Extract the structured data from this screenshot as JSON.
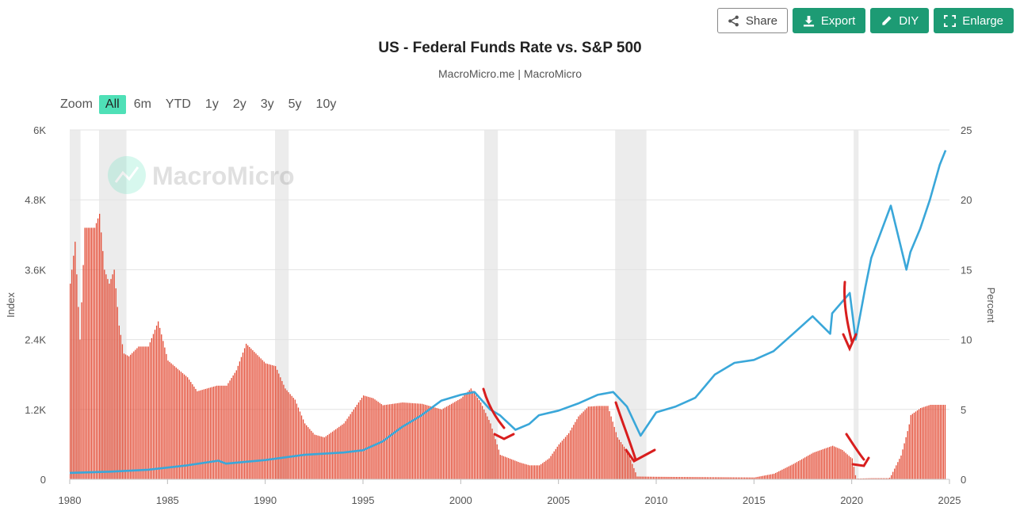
{
  "toolbar": {
    "share_label": "Share",
    "export_label": "Export",
    "diy_label": "DIY",
    "enlarge_label": "Enlarge",
    "accent_color": "#1d9b74"
  },
  "zoom": {
    "label": "Zoom",
    "options": [
      "All",
      "6m",
      "YTD",
      "1y",
      "2y",
      "3y",
      "5y",
      "10y"
    ],
    "selected": "All"
  },
  "watermark": "MacroMicro",
  "chart_data": {
    "type": "bar",
    "title": "US - Federal Funds Rate vs. S&P 500",
    "subtitle": "MacroMicro.me | MacroMicro",
    "x_ticks": [
      "1980",
      "1985",
      "1990",
      "1995",
      "2000",
      "2005",
      "2010",
      "2015",
      "2020",
      "2025"
    ],
    "xlim": [
      1980,
      2025
    ],
    "y_left": {
      "label": "Index",
      "ticks": [
        "0",
        "1.2K",
        "2.4K",
        "3.6K",
        "4.8K",
        "6K"
      ],
      "range": [
        0,
        6000
      ]
    },
    "y_right": {
      "label": "Percent",
      "ticks": [
        "0",
        "5",
        "10",
        "15",
        "20",
        "25"
      ],
      "range": [
        0,
        25
      ]
    },
    "recessions": [
      [
        1980.0,
        1980.55
      ],
      [
        1981.5,
        1982.9
      ],
      [
        1990.5,
        1991.2
      ],
      [
        2001.2,
        2001.9
      ],
      [
        2007.9,
        2009.5
      ],
      [
        2020.1,
        2020.35
      ]
    ],
    "series": [
      {
        "type": "bar",
        "axis": "right",
        "color": "#e34a33",
        "x": [
          1980.0,
          1980.25,
          1980.5,
          1980.75,
          1981.0,
          1981.25,
          1981.5,
          1981.75,
          1982.0,
          1982.25,
          1982.5,
          1982.75,
          1983.0,
          1983.5,
          1984.0,
          1984.5,
          1985.0,
          1985.5,
          1986.0,
          1986.5,
          1987.0,
          1987.5,
          1988.0,
          1988.5,
          1989.0,
          1989.5,
          1990.0,
          1990.5,
          1991.0,
          1991.5,
          1992.0,
          1992.5,
          1993.0,
          1994.0,
          1994.5,
          1995.0,
          1995.5,
          1996.0,
          1997.0,
          1998.0,
          1999.0,
          2000.0,
          2000.5,
          2001.0,
          2001.5,
          2002.0,
          2003.0,
          2003.5,
          2004.0,
          2004.5,
          2005.0,
          2005.5,
          2006.0,
          2006.5,
          2007.0,
          2007.5,
          2008.0,
          2008.5,
          2009.0,
          2010.0,
          2015.0,
          2016.0,
          2017.0,
          2018.0,
          2019.0,
          2019.5,
          2019.9,
          2020.0,
          2020.2,
          2021.0,
          2021.9,
          2022.0,
          2022.5,
          2022.9,
          2023.0,
          2023.5,
          2024.0,
          2024.5,
          2024.7,
          2024.8
        ],
        "values": [
          14,
          17,
          10,
          18,
          18,
          18,
          19,
          15,
          14,
          15,
          11,
          9,
          8.8,
          9.5,
          9.5,
          11.3,
          8.5,
          7.9,
          7.3,
          6.3,
          6.5,
          6.7,
          6.7,
          7.8,
          9.7,
          9.0,
          8.3,
          8.1,
          6.5,
          5.7,
          4.0,
          3.2,
          3.0,
          4.0,
          5.0,
          6.0,
          5.8,
          5.3,
          5.5,
          5.4,
          5.0,
          5.8,
          6.5,
          5.5,
          4.0,
          1.75,
          1.2,
          1.0,
          1.0,
          1.5,
          2.5,
          3.3,
          4.5,
          5.2,
          5.25,
          5.25,
          3.0,
          2.0,
          0.2,
          0.18,
          0.13,
          0.4,
          1.1,
          1.9,
          2.4,
          2.1,
          1.6,
          1.5,
          0.05,
          0.08,
          0.08,
          0.3,
          1.7,
          3.8,
          4.6,
          5.1,
          5.33,
          5.33,
          5.33,
          5.33
        ]
      },
      {
        "type": "line",
        "axis": "left",
        "color": "#3aa7d9",
        "x": [
          1980,
          1982,
          1984,
          1986,
          1987.6,
          1988,
          1990,
          1992,
          1994,
          1995,
          1996,
          1997,
          1998,
          1999,
          2000,
          2000.7,
          2001.5,
          2002,
          2002.8,
          2003.5,
          2004,
          2005,
          2006,
          2007,
          2007.8,
          2008.5,
          2009.2,
          2010,
          2011,
          2012,
          2013,
          2014,
          2015,
          2016,
          2017,
          2018,
          2018.9,
          2019,
          2019.9,
          2020.2,
          2020.7,
          2021,
          2022,
          2022.8,
          2023,
          2023.5,
          2024,
          2024.5,
          2024.8
        ],
        "values": [
          110,
          130,
          165,
          240,
          320,
          270,
          330,
          420,
          460,
          500,
          650,
          900,
          1100,
          1350,
          1450,
          1500,
          1200,
          1100,
          850,
          950,
          1100,
          1180,
          1300,
          1450,
          1500,
          1250,
          750,
          1150,
          1250,
          1400,
          1800,
          2000,
          2050,
          2200,
          2500,
          2800,
          2500,
          2850,
          3200,
          2400,
          3300,
          3800,
          4700,
          3600,
          3900,
          4300,
          4800,
          5400,
          5650
        ]
      }
    ]
  }
}
